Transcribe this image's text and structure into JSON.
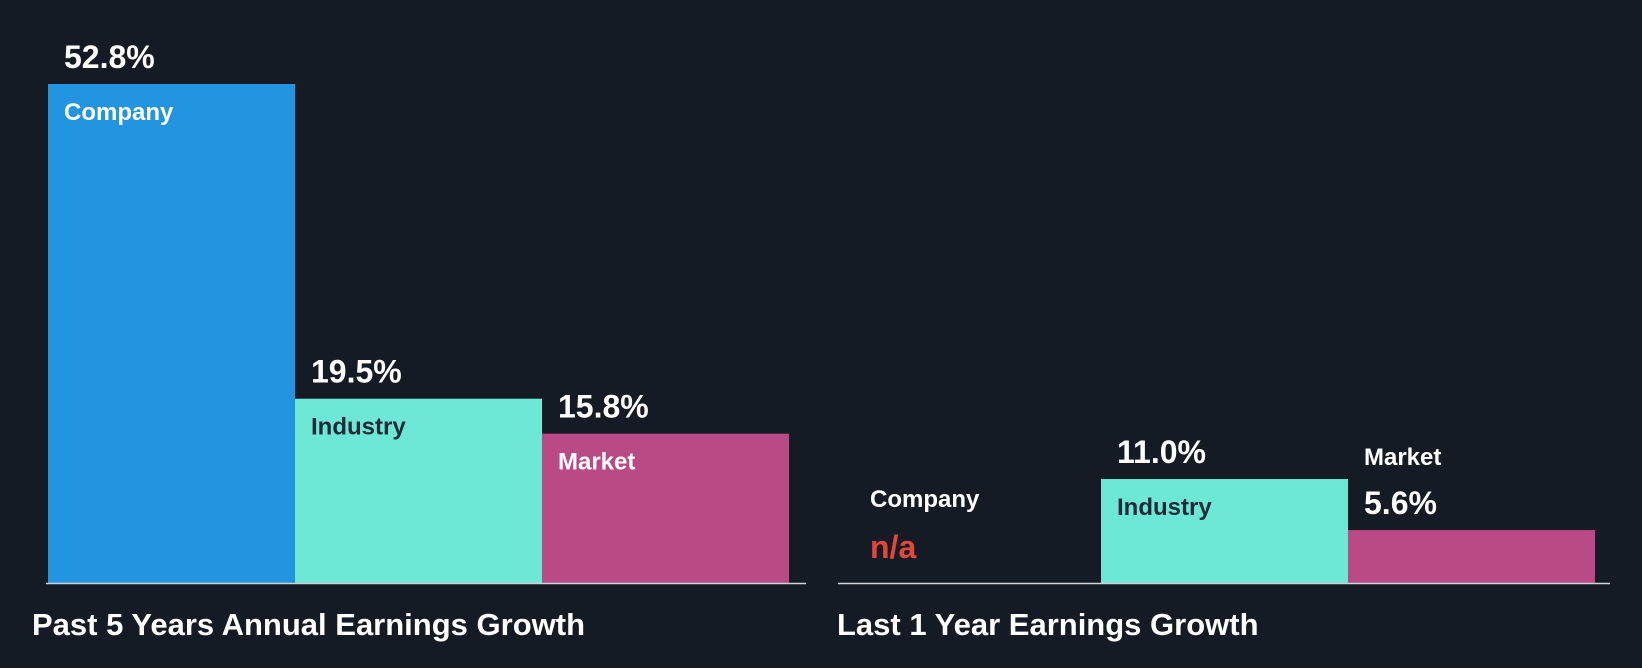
{
  "colors": {
    "background": "#151b24",
    "company": "#2394e0",
    "industry": "#6ee8d6",
    "market": "#ba4a86",
    "axis": "#cfd3d8",
    "na": "#e5463a",
    "text_light": "#ffffff",
    "text_dark": "#1c2a3a"
  },
  "chart_data": [
    {
      "type": "bar",
      "title": "Past 5 Years Annual Earnings Growth",
      "categories": [
        "Company",
        "Industry",
        "Market"
      ],
      "values": [
        52.8,
        19.5,
        15.8
      ],
      "value_labels": [
        "52.8%",
        "19.5%",
        "15.8%"
      ],
      "ylim": [
        0,
        52.8
      ],
      "grid": false,
      "legend": "none"
    },
    {
      "type": "bar",
      "title": "Last 1 Year Earnings Growth",
      "categories": [
        "Company",
        "Industry",
        "Market"
      ],
      "values": [
        null,
        11.0,
        5.6
      ],
      "value_labels": [
        "n/a",
        "11.0%",
        "5.6%"
      ],
      "ylim": [
        0,
        52.8
      ],
      "grid": false,
      "legend": "none"
    }
  ]
}
